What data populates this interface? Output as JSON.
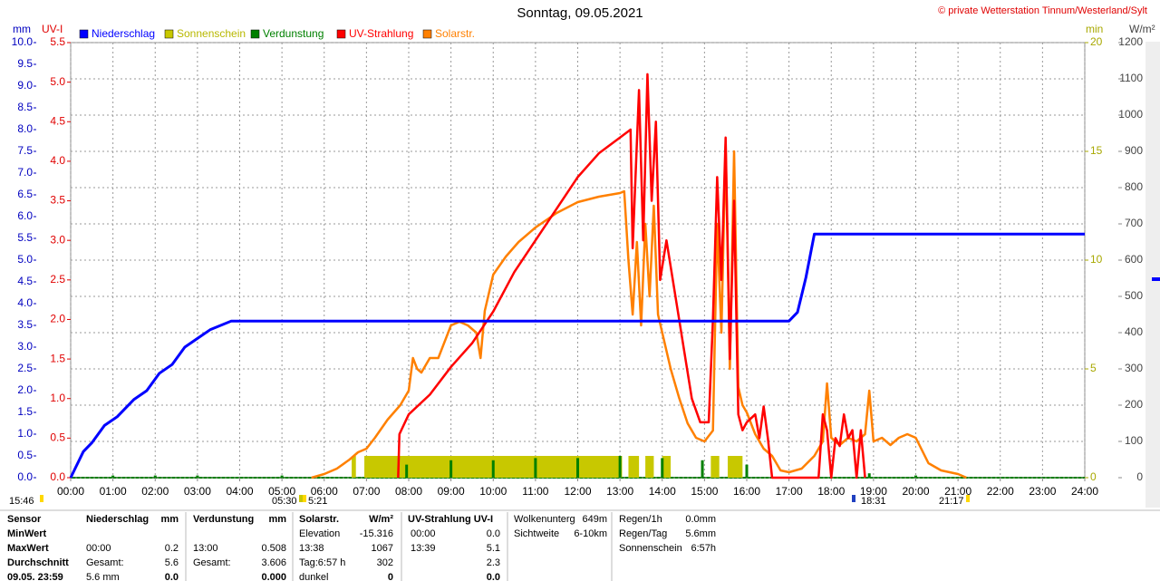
{
  "chart_data": {
    "type": "line",
    "title": "Sonntag, 09.05.2021",
    "credit": "© private Wetterstation Tinnum/Westerland/Sylt",
    "y_label": "mm",
    "uv_label": "UV-I",
    "y2_label": "min",
    "y3_label": "W/m²",
    "grid": true,
    "xlim": [
      0,
      24
    ],
    "xticks": [
      {
        "value": 0,
        "label": "00:00"
      },
      {
        "value": 1,
        "label": "01:00"
      },
      {
        "value": 2,
        "label": "02:00"
      },
      {
        "value": 3,
        "label": "03:00"
      },
      {
        "value": 4,
        "label": "04:00"
      },
      {
        "value": 5,
        "label": "05:00"
      },
      {
        "value": 6,
        "label": "06:00"
      },
      {
        "value": 7,
        "label": "07:00"
      },
      {
        "value": 8,
        "label": "08:00"
      },
      {
        "value": 9,
        "label": "09:00"
      },
      {
        "value": 10,
        "label": "10:00"
      },
      {
        "value": 11,
        "label": "11:00"
      },
      {
        "value": 12,
        "label": "12:00"
      },
      {
        "value": 13,
        "label": "13:00"
      },
      {
        "value": 14,
        "label": "14:00"
      },
      {
        "value": 15,
        "label": "15:00"
      },
      {
        "value": 16,
        "label": "16:00"
      },
      {
        "value": 17,
        "label": "17:00"
      },
      {
        "value": 18,
        "label": "18:00"
      },
      {
        "value": 19,
        "label": "19:00"
      },
      {
        "value": 20,
        "label": "20:00"
      },
      {
        "value": 21,
        "label": "21:00"
      },
      {
        "value": 22,
        "label": "22:00"
      },
      {
        "value": 23,
        "label": "23:00"
      },
      {
        "value": 24,
        "label": "24:00"
      }
    ],
    "ylim": [
      0,
      10
    ],
    "yticks": [
      {
        "value": 0,
        "label": "0.0"
      },
      {
        "value": 0.5,
        "label": "0.5"
      },
      {
        "value": 1,
        "label": "1.0"
      },
      {
        "value": 1.5,
        "label": "1.5"
      },
      {
        "value": 2,
        "label": "2.0"
      },
      {
        "value": 2.5,
        "label": "2.5"
      },
      {
        "value": 3,
        "label": "3.0"
      },
      {
        "value": 3.5,
        "label": "3.5"
      },
      {
        "value": 4,
        "label": "4.0"
      },
      {
        "value": 4.5,
        "label": "4.5"
      },
      {
        "value": 5,
        "label": "5.0"
      },
      {
        "value": 5.5,
        "label": "5.5"
      },
      {
        "value": 6,
        "label": "6.0"
      },
      {
        "value": 6.5,
        "label": "6.5"
      },
      {
        "value": 7,
        "label": "7.0"
      },
      {
        "value": 7.5,
        "label": "7.5"
      },
      {
        "value": 8,
        "label": "8.0"
      },
      {
        "value": 8.5,
        "label": "8.5"
      },
      {
        "value": 9,
        "label": "9.0"
      },
      {
        "value": 9.5,
        "label": "9.5"
      },
      {
        "value": 10,
        "label": "10.0"
      }
    ],
    "uv_ylim": [
      0,
      5.5
    ],
    "uv_yticks": [
      {
        "value": 0,
        "label": "0.0"
      },
      {
        "value": 0.5,
        "label": "0.5"
      },
      {
        "value": 1,
        "label": "1.0"
      },
      {
        "value": 1.5,
        "label": "1.5"
      },
      {
        "value": 2,
        "label": "2.0"
      },
      {
        "value": 2.5,
        "label": "2.5"
      },
      {
        "value": 3,
        "label": "3.0"
      },
      {
        "value": 3.5,
        "label": "3.5"
      },
      {
        "value": 4,
        "label": "4.0"
      },
      {
        "value": 4.5,
        "label": "4.5"
      },
      {
        "value": 5,
        "label": "5.0"
      },
      {
        "value": 5.5,
        "label": "5.5"
      }
    ],
    "y2lim": [
      0,
      20
    ],
    "y2ticks": [
      0,
      5,
      10,
      15,
      20
    ],
    "y3lim": [
      0,
      1200
    ],
    "y3ticks": [
      0,
      100,
      200,
      300,
      400,
      500,
      600,
      700,
      800,
      900,
      1000,
      1100,
      1200
    ],
    "series": [
      {
        "name": "Niederschlag",
        "color": "#0000ff",
        "axis": "y",
        "style": "line",
        "x": [
          0,
          0.1,
          0.3,
          0.5,
          0.8,
          1.1,
          1.5,
          1.8,
          2.1,
          2.4,
          2.7,
          3.0,
          3.3,
          3.8,
          17.0,
          17.2,
          17.4,
          17.6,
          24
        ],
        "values": [
          0,
          0.2,
          0.6,
          0.8,
          1.2,
          1.4,
          1.8,
          2.0,
          2.4,
          2.6,
          3.0,
          3.2,
          3.4,
          3.6,
          3.6,
          3.8,
          4.6,
          5.6,
          5.6
        ]
      },
      {
        "name": "Sonnenschein",
        "color": "#c8c800",
        "axis": "y2",
        "style": "blocks",
        "x": [
          6.65,
          6.95,
          13.2,
          13.6,
          14.0,
          15.15,
          15.55
        ],
        "x_end": [
          6.75,
          13.05,
          13.45,
          13.8,
          14.2,
          15.35,
          15.9
        ],
        "values": [
          1,
          1,
          1,
          1,
          1,
          1,
          1
        ]
      },
      {
        "name": "Verdunstung",
        "color": "#008000",
        "axis": "y",
        "style": "spikes",
        "x": [
          1.0,
          2.0,
          3.0,
          5.0,
          7.95,
          9.0,
          10.0,
          11.0,
          12.0,
          13.0,
          14.0,
          14.95,
          16.0,
          18.9,
          20.0
        ],
        "values": [
          0.05,
          0.05,
          0.05,
          0.05,
          0.3,
          0.4,
          0.4,
          0.45,
          0.45,
          0.5,
          0.45,
          0.4,
          0.3,
          0.1,
          0.05
        ]
      },
      {
        "name": "UV-Strahlung",
        "color": "#ff0000",
        "axis": "uv",
        "style": "line",
        "x": [
          7.75,
          7.78,
          8.0,
          8.5,
          9.0,
          9.5,
          10.0,
          10.5,
          11.0,
          11.5,
          12.0,
          12.5,
          13.0,
          13.25,
          13.3,
          13.45,
          13.55,
          13.65,
          13.75,
          13.85,
          13.95,
          14.1,
          14.4,
          14.7,
          14.9,
          15.1,
          15.2,
          15.3,
          15.4,
          15.5,
          15.6,
          15.7,
          15.8,
          15.9,
          16.0,
          16.2,
          16.3,
          16.4,
          16.5,
          16.6,
          17.7,
          17.8,
          17.9,
          18.0,
          18.1,
          18.2,
          18.3,
          18.4,
          18.5,
          18.6,
          18.7,
          18.8
        ],
        "values": [
          0,
          0.55,
          0.8,
          1.05,
          1.4,
          1.7,
          2.1,
          2.6,
          3.0,
          3.4,
          3.8,
          4.1,
          4.3,
          4.4,
          2.9,
          4.9,
          3.0,
          5.1,
          3.5,
          4.5,
          2.5,
          3.0,
          2.0,
          1.0,
          0.7,
          0.7,
          2.0,
          3.8,
          2.5,
          4.3,
          1.5,
          3.5,
          0.8,
          0.6,
          0.7,
          0.8,
          0.5,
          0.9,
          0.5,
          0,
          0,
          0.8,
          0.6,
          0,
          0.5,
          0.4,
          0.8,
          0.5,
          0.6,
          0,
          0.6,
          0
        ]
      },
      {
        "name": "Solarstr.",
        "color": "#ff8000",
        "axis": "y3",
        "style": "line",
        "x": [
          5.7,
          6.0,
          6.3,
          6.6,
          6.8,
          7.0,
          7.2,
          7.5,
          7.8,
          8.0,
          8.1,
          8.2,
          8.3,
          8.5,
          8.7,
          9.0,
          9.2,
          9.4,
          9.6,
          9.7,
          9.8,
          10.0,
          10.3,
          10.6,
          11.0,
          11.5,
          12.0,
          12.5,
          13.0,
          13.1,
          13.2,
          13.3,
          13.4,
          13.5,
          13.6,
          13.7,
          13.8,
          13.9,
          14.0,
          14.2,
          14.4,
          14.6,
          14.8,
          15.0,
          15.2,
          15.3,
          15.4,
          15.5,
          15.6,
          15.7,
          15.8,
          15.9,
          16.0,
          16.2,
          16.4,
          16.6,
          16.8,
          17.0,
          17.3,
          17.6,
          17.8,
          17.9,
          18.0,
          18.2,
          18.4,
          18.6,
          18.8,
          18.9,
          19.0,
          19.2,
          19.4,
          19.6,
          19.8,
          20.0,
          20.3,
          20.6,
          21.0,
          21.2
        ],
        "values": [
          0,
          10,
          25,
          50,
          70,
          80,
          110,
          160,
          200,
          240,
          330,
          300,
          290,
          330,
          330,
          420,
          430,
          420,
          400,
          330,
          460,
          560,
          610,
          650,
          690,
          730,
          760,
          775,
          785,
          790,
          600,
          450,
          650,
          420,
          700,
          500,
          750,
          450,
          400,
          300,
          220,
          150,
          110,
          100,
          130,
          700,
          400,
          920,
          300,
          900,
          250,
          200,
          180,
          120,
          80,
          60,
          20,
          15,
          25,
          60,
          100,
          260,
          110,
          90,
          110,
          100,
          120,
          240,
          100,
          110,
          90,
          110,
          120,
          110,
          40,
          20,
          10,
          0
        ]
      }
    ],
    "annotations": [
      "15:46",
      "05:30",
      "5:21",
      "18:31",
      "21:17"
    ]
  },
  "stats": {
    "rows": [
      [
        "Sensor",
        "Niederschlag",
        "mm",
        "Verdunstung",
        "mm",
        "Solarstr.",
        "W/m²",
        "UV-Strahlung UV-I",
        null
      ],
      [
        "MinWert",
        null,
        null,
        null,
        null,
        "Elevation",
        "-15.316",
        "00:00",
        "0.0"
      ],
      [
        "MaxWert",
        "00:00",
        "0.2",
        "13:00",
        "0.508",
        "13:38",
        "1067",
        "13:39",
        "5.1"
      ],
      [
        "Durchschnitt",
        "Gesamt:",
        "5.6",
        "Gesamt:",
        "3.606",
        "Tag:6:57 h",
        "302",
        null,
        "2.3"
      ],
      [
        "09.05. 23:59",
        "5.6 mm",
        "0.0",
        null,
        "0.000",
        "dunkel",
        "0",
        null,
        "0.0"
      ]
    ],
    "info": [
      [
        [
          "Wolkenunterg",
          "649m"
        ],
        [
          "Sichtweite",
          "6-10km"
        ]
      ],
      [
        [
          "Regen/1h",
          "0.0mm"
        ],
        [
          "Regen/Tag",
          "5.6mm"
        ],
        [
          "Sonnenschein",
          "6:57h"
        ]
      ]
    ]
  }
}
